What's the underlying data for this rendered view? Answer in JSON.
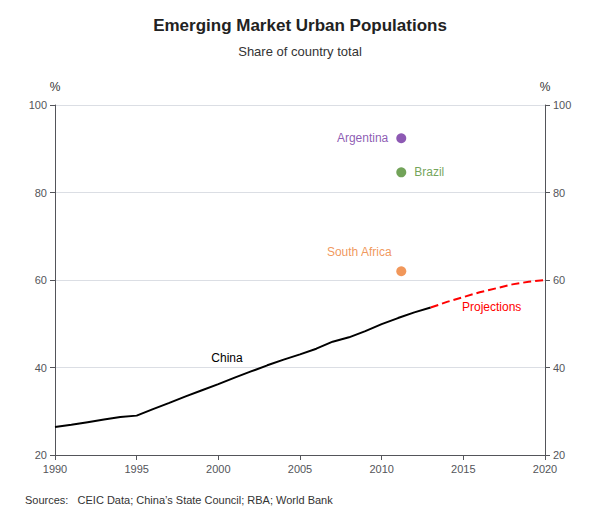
{
  "chart_data": {
    "type": "line",
    "title": "Emerging Market Urban Populations",
    "subtitle": "Share of country total",
    "source": "Sources:   CEIC Data; China’s State Council; RBA; World Bank",
    "ylabel": "%",
    "y2label": "%",
    "xlim": [
      1990,
      2020
    ],
    "xticks": [
      1990,
      1995,
      2000,
      2005,
      2010,
      2015,
      2020
    ],
    "ylim": [
      20,
      100
    ],
    "yticks": [
      20,
      40,
      60,
      80,
      100
    ],
    "y2lim": [
      20,
      100
    ],
    "y2ticks": [
      20,
      40,
      60,
      80,
      100
    ],
    "grid": true,
    "series": [
      {
        "name": "China",
        "type": "line",
        "color": "#000000",
        "line_style": "solid",
        "x": [
          1990,
          1991,
          1992,
          1993,
          1994,
          1995,
          1996,
          1997,
          1998,
          1999,
          2000,
          2001,
          2002,
          2003,
          2004,
          2005,
          2006,
          2007,
          2008,
          2009,
          2010,
          2011,
          2012,
          2013
        ],
        "values": [
          26.4,
          26.9,
          27.5,
          28.1,
          28.7,
          29.0,
          30.5,
          31.9,
          33.4,
          34.8,
          36.2,
          37.7,
          39.1,
          40.5,
          41.8,
          43.0,
          44.3,
          45.9,
          46.9,
          48.3,
          49.9,
          51.3,
          52.6,
          53.7
        ]
      },
      {
        "name": "Projections",
        "type": "line",
        "color": "#ff0000",
        "line_style": "dashed",
        "x": [
          2013,
          2014,
          2015,
          2016,
          2017,
          2018,
          2019,
          2020
        ],
        "values": [
          53.7,
          55.0,
          56.1,
          57.2,
          58.1,
          59.0,
          59.6,
          60.0
        ]
      },
      {
        "name": "Argentina",
        "type": "scatter",
        "color": "#7030a0",
        "marker": "circle",
        "x": [
          2011.2
        ],
        "values": [
          92.4
        ]
      },
      {
        "name": "Brazil",
        "type": "scatter",
        "color": "#4f8c2f",
        "marker": "circle",
        "x": [
          2011.2
        ],
        "values": [
          84.6
        ]
      },
      {
        "name": "South Africa",
        "type": "scatter",
        "color": "#ed7d31",
        "marker": "circle",
        "x": [
          2011.2
        ],
        "values": [
          62.0
        ]
      }
    ]
  }
}
